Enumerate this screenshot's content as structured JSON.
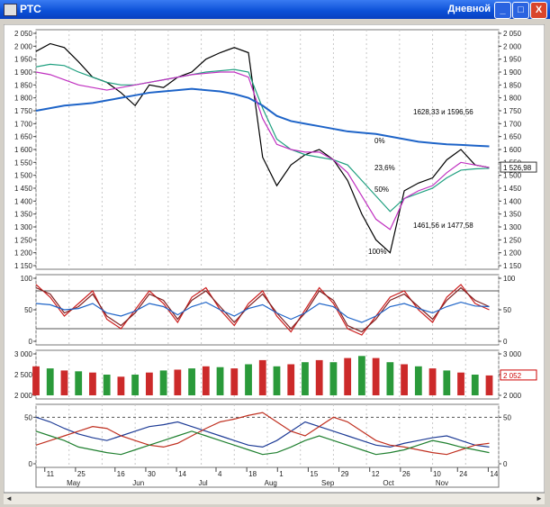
{
  "window": {
    "title": "РТС",
    "period": "Дневной",
    "min_btn": "_",
    "max_btn": "□",
    "close_btn": "X"
  },
  "scroll": {
    "left": "◄",
    "right": "►"
  },
  "chart_data": [
    {
      "type": "line",
      "title": "РТС",
      "ylim": [
        1150,
        2050
      ],
      "yticks": [
        2050,
        2000,
        1950,
        1900,
        1850,
        1800,
        1750,
        1700,
        1650,
        1600,
        1550,
        1500,
        1450,
        1400,
        1350,
        1300,
        1250,
        1200,
        1150
      ],
      "ytick_labels": [
        "2 050",
        "2 000",
        "1 950",
        "1 900",
        "1 850",
        "1 800",
        "1 750",
        "1 700",
        "1 650",
        "1 600",
        "1 550",
        "1 500",
        "1 450",
        "1 400",
        "1 350",
        "1 300",
        "1 250",
        "1 200",
        "1 150"
      ],
      "current_value_label": "1 526,98",
      "annotations": [
        "1628,33 и 1596,56",
        "1461,56 и 1477,58",
        "0%",
        "23,6%",
        "50%",
        "100%"
      ],
      "x_days": [
        0,
        6,
        12,
        18,
        24,
        30,
        36,
        42,
        48,
        54,
        60,
        66,
        72,
        78,
        84,
        90,
        96,
        102,
        108,
        114,
        120,
        126,
        132,
        138,
        144,
        150,
        156,
        162,
        168,
        174,
        180,
        186,
        192
      ],
      "series": [
        {
          "values": [
            1980,
            2010,
            1995,
            1940,
            1880,
            1860,
            1820,
            1770,
            1850,
            1840,
            1880,
            1900,
            1950,
            1975,
            1995,
            1975,
            1570,
            1460,
            1540,
            1580,
            1600,
            1560,
            1480,
            1350,
            1250,
            1200,
            1440,
            1470,
            1490,
            1560,
            1600,
            1540,
            1530
          ],
          "color": "#000000"
        },
        {
          "values": [
            1920,
            1930,
            1925,
            1900,
            1880,
            1860,
            1850,
            1850,
            1860,
            1870,
            1880,
            1890,
            1900,
            1905,
            1910,
            1900,
            1760,
            1640,
            1600,
            1580,
            1570,
            1560,
            1540,
            1480,
            1420,
            1360,
            1410,
            1430,
            1450,
            1490,
            1520,
            1525,
            1527
          ],
          "color": "#20a080"
        },
        {
          "values": [
            1750,
            1760,
            1770,
            1775,
            1780,
            1790,
            1800,
            1810,
            1820,
            1825,
            1830,
            1835,
            1830,
            1825,
            1815,
            1800,
            1770,
            1730,
            1710,
            1700,
            1690,
            1680,
            1670,
            1665,
            1660,
            1650,
            1640,
            1630,
            1625,
            1620,
            1618,
            1615,
            1612
          ],
          "color": "#1e64c8"
        },
        {
          "values": [
            1900,
            1890,
            1870,
            1850,
            1840,
            1830,
            1840,
            1850,
            1860,
            1870,
            1880,
            1890,
            1895,
            1900,
            1900,
            1880,
            1720,
            1620,
            1600,
            1590,
            1590,
            1560,
            1510,
            1420,
            1330,
            1290,
            1410,
            1440,
            1460,
            1510,
            1550,
            1540,
            1530
          ],
          "color": "#c030c0"
        }
      ]
    },
    {
      "type": "line",
      "ylim": [
        0,
        100
      ],
      "yticks": [
        0,
        50,
        100
      ],
      "ytick_labels": [
        "0",
        "50",
        "100"
      ],
      "levels": [
        20,
        80
      ],
      "x_days": [
        0,
        6,
        12,
        18,
        24,
        30,
        36,
        42,
        48,
        54,
        60,
        66,
        72,
        78,
        84,
        90,
        96,
        102,
        108,
        114,
        120,
        126,
        132,
        138,
        144,
        150,
        156,
        162,
        168,
        174,
        180,
        186,
        192
      ],
      "series": [
        {
          "values": [
            90,
            70,
            40,
            60,
            80,
            35,
            20,
            50,
            80,
            60,
            30,
            70,
            85,
            50,
            25,
            60,
            80,
            40,
            15,
            50,
            85,
            60,
            20,
            10,
            40,
            70,
            80,
            50,
            30,
            70,
            90,
            60,
            50
          ],
          "color": "#cc2020"
        },
        {
          "values": [
            85,
            75,
            45,
            55,
            75,
            40,
            25,
            45,
            75,
            65,
            35,
            65,
            80,
            55,
            30,
            55,
            75,
            45,
            20,
            45,
            80,
            65,
            25,
            15,
            35,
            65,
            75,
            55,
            35,
            65,
            85,
            65,
            55
          ],
          "color": "#802020"
        },
        {
          "values": [
            60,
            58,
            50,
            52,
            60,
            45,
            40,
            48,
            60,
            55,
            42,
            55,
            62,
            50,
            40,
            52,
            58,
            45,
            35,
            45,
            60,
            55,
            38,
            30,
            40,
            55,
            60,
            52,
            45,
            55,
            62,
            56,
            55
          ],
          "color": "#1e64c8"
        }
      ]
    },
    {
      "type": "bar",
      "ylim": [
        2000,
        3000
      ],
      "yticks": [
        2000,
        2500,
        3000
      ],
      "ytick_labels": [
        "2 000",
        "2 500",
        "3 000"
      ],
      "current_value_label": "2 052",
      "x_days": [
        0,
        6,
        12,
        18,
        24,
        30,
        36,
        42,
        48,
        54,
        60,
        66,
        72,
        78,
        84,
        90,
        96,
        102,
        108,
        114,
        120,
        126,
        132,
        138,
        144,
        150,
        156,
        162,
        168,
        174,
        180,
        186,
        192
      ],
      "values": [
        2700,
        2650,
        2600,
        2580,
        2550,
        2500,
        2450,
        2500,
        2550,
        2600,
        2620,
        2650,
        2700,
        2680,
        2650,
        2750,
        2850,
        2700,
        2750,
        2800,
        2850,
        2800,
        2900,
        2950,
        2900,
        2800,
        2750,
        2700,
        2650,
        2600,
        2550,
        2500,
        2480
      ]
    },
    {
      "type": "line",
      "ylim": [
        0,
        60
      ],
      "yticks": [
        0,
        50
      ],
      "ytick_labels": [
        "0",
        "50"
      ],
      "levels": [
        50
      ],
      "x_days": [
        0,
        6,
        12,
        18,
        24,
        30,
        36,
        42,
        48,
        54,
        60,
        66,
        72,
        78,
        84,
        90,
        96,
        102,
        108,
        114,
        120,
        126,
        132,
        138,
        144,
        150,
        156,
        162,
        168,
        174,
        180,
        186,
        192
      ],
      "series": [
        {
          "values": [
            50,
            45,
            38,
            32,
            28,
            25,
            30,
            35,
            40,
            42,
            45,
            40,
            35,
            30,
            25,
            20,
            18,
            25,
            35,
            45,
            40,
            35,
            30,
            25,
            20,
            18,
            22,
            25,
            28,
            30,
            25,
            20,
            18
          ],
          "color": "#1e3c96"
        },
        {
          "values": [
            20,
            25,
            30,
            35,
            40,
            38,
            30,
            25,
            20,
            18,
            22,
            30,
            38,
            45,
            48,
            52,
            55,
            45,
            35,
            30,
            40,
            50,
            45,
            35,
            25,
            20,
            18,
            15,
            12,
            10,
            15,
            20,
            22
          ],
          "color": "#c03020"
        },
        {
          "values": [
            35,
            30,
            25,
            18,
            15,
            12,
            10,
            15,
            20,
            25,
            30,
            35,
            30,
            25,
            20,
            15,
            10,
            12,
            18,
            25,
            30,
            25,
            20,
            15,
            10,
            12,
            15,
            20,
            25,
            22,
            18,
            15,
            12
          ],
          "color": "#208030"
        }
      ]
    }
  ],
  "x_axis": {
    "days": [
      "11",
      "25",
      "16",
      "30",
      "14",
      "4",
      "18",
      "1",
      "15",
      "29",
      "12",
      "26",
      "10",
      "24",
      "14"
    ],
    "months": [
      "May",
      "Jun",
      "Jul",
      "Aug",
      "Sep",
      "Oct",
      "Nov"
    ]
  }
}
